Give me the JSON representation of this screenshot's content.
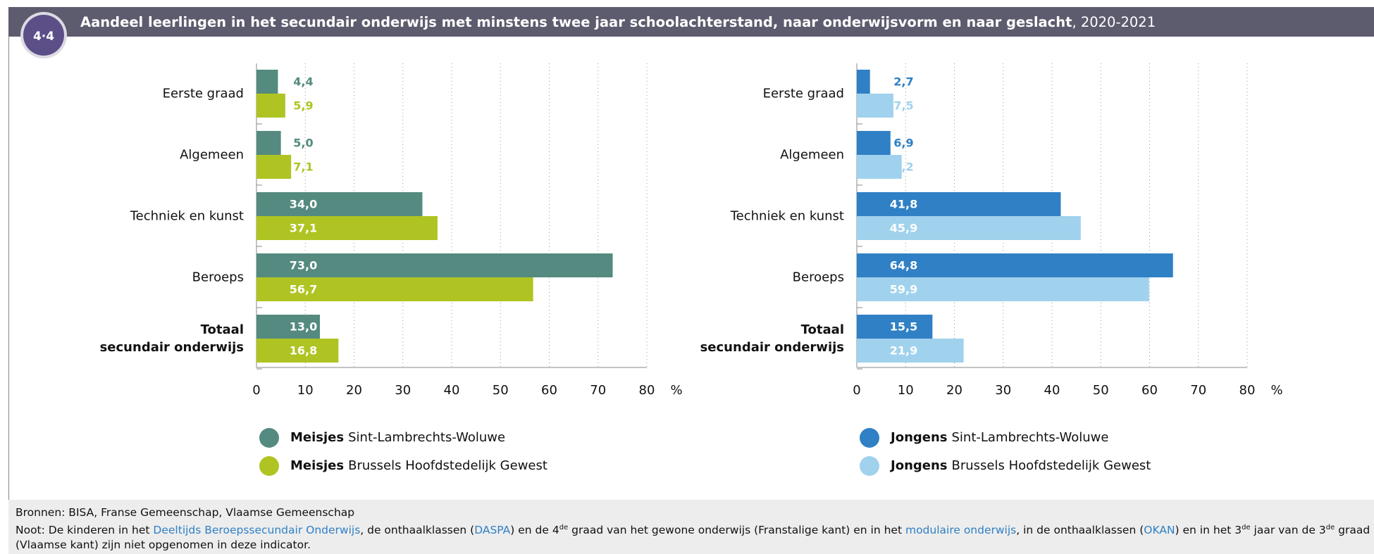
{
  "header": {
    "badge": "4·4",
    "title": "Aandeel leerlingen in het secundair onderwijs met minstens twee jaar schoolachterstand, naar onderwijsvorm en naar geslacht",
    "title_suffix": ", 2020-2021"
  },
  "chart_data": [
    {
      "type": "bar",
      "orientation": "horizontal",
      "categories": [
        "Eerste graad",
        "Algemeen",
        "Techniek en kunst",
        "Beroeps",
        "Totaal\nsecundair onderwijs"
      ],
      "series": [
        {
          "group": "Meisjes",
          "name": "Sint-Lambrechts-Woluwe",
          "color": "#548a7f",
          "values": [
            4.4,
            5.0,
            34.0,
            73.0,
            13.0
          ],
          "value_labels": [
            "4,4",
            "5,0",
            "34,0",
            "73,0",
            "13,0"
          ]
        },
        {
          "group": "Meisjes",
          "name": "Brussels Hoofdstedelijk Gewest",
          "color": "#afc422",
          "values": [
            5.9,
            7.1,
            37.1,
            56.7,
            16.8
          ],
          "value_labels": [
            "5,9",
            "7,1",
            "37,1",
            "56,7",
            "16,8"
          ]
        }
      ],
      "xlim": [
        0,
        80
      ],
      "xticks": [
        0,
        10,
        20,
        30,
        40,
        50,
        60,
        70,
        80
      ],
      "xlabel": "%",
      "grid": true
    },
    {
      "type": "bar",
      "orientation": "horizontal",
      "categories": [
        "Eerste graad",
        "Algemeen",
        "Techniek en kunst",
        "Beroeps",
        "Totaal\nsecundair onderwijs"
      ],
      "series": [
        {
          "group": "Jongens",
          "name": "Sint-Lambrechts-Woluwe",
          "color": "#2f80c5",
          "values": [
            2.7,
            6.9,
            41.8,
            64.8,
            15.5
          ],
          "value_labels": [
            "2,7",
            "6,9",
            "41,8",
            "64,8",
            "15,5"
          ]
        },
        {
          "group": "Jongens",
          "name": "Brussels Hoofdstedelijk Gewest",
          "color": "#a0d2ed",
          "values": [
            7.5,
            9.2,
            45.9,
            59.9,
            21.9
          ],
          "value_labels": [
            "7,5",
            "9,2",
            "45,9",
            "59,9",
            "21,9"
          ]
        }
      ],
      "xlim": [
        0,
        80
      ],
      "xticks": [
        0,
        10,
        20,
        30,
        40,
        50,
        60,
        70,
        80
      ],
      "xlabel": "%",
      "grid": true
    }
  ],
  "footer": {
    "sources": "Bronnen: BISA, Franse Gemeenschap, Vlaamse Gemeenschap",
    "note": [
      {
        "text": "Noot: De kinderen in het "
      },
      {
        "text": "Deeltijds Beroepssecundair Onderwijs",
        "link": true
      },
      {
        "text": ", de onthaalklassen ("
      },
      {
        "text": "DASPA",
        "link": true
      },
      {
        "text": ") en de 4"
      },
      {
        "text": "de",
        "sup": true
      },
      {
        "text": " graad van het gewone onderwijs (Franstalige kant) en in het "
      },
      {
        "text": "modulaire onderwijs",
        "link": true
      },
      {
        "text": ", in de onthaalklassen ("
      },
      {
        "text": "OKAN",
        "link": true
      },
      {
        "text": ") en in het 3"
      },
      {
        "text": "de",
        "sup": true
      },
      {
        "text": " jaar van de 3"
      },
      {
        "text": "de",
        "sup": true
      },
      {
        "text": " graad"
      }
    ],
    "note_line2": "(Vlaamse kant) zijn niet opgenomen in deze indicator."
  }
}
